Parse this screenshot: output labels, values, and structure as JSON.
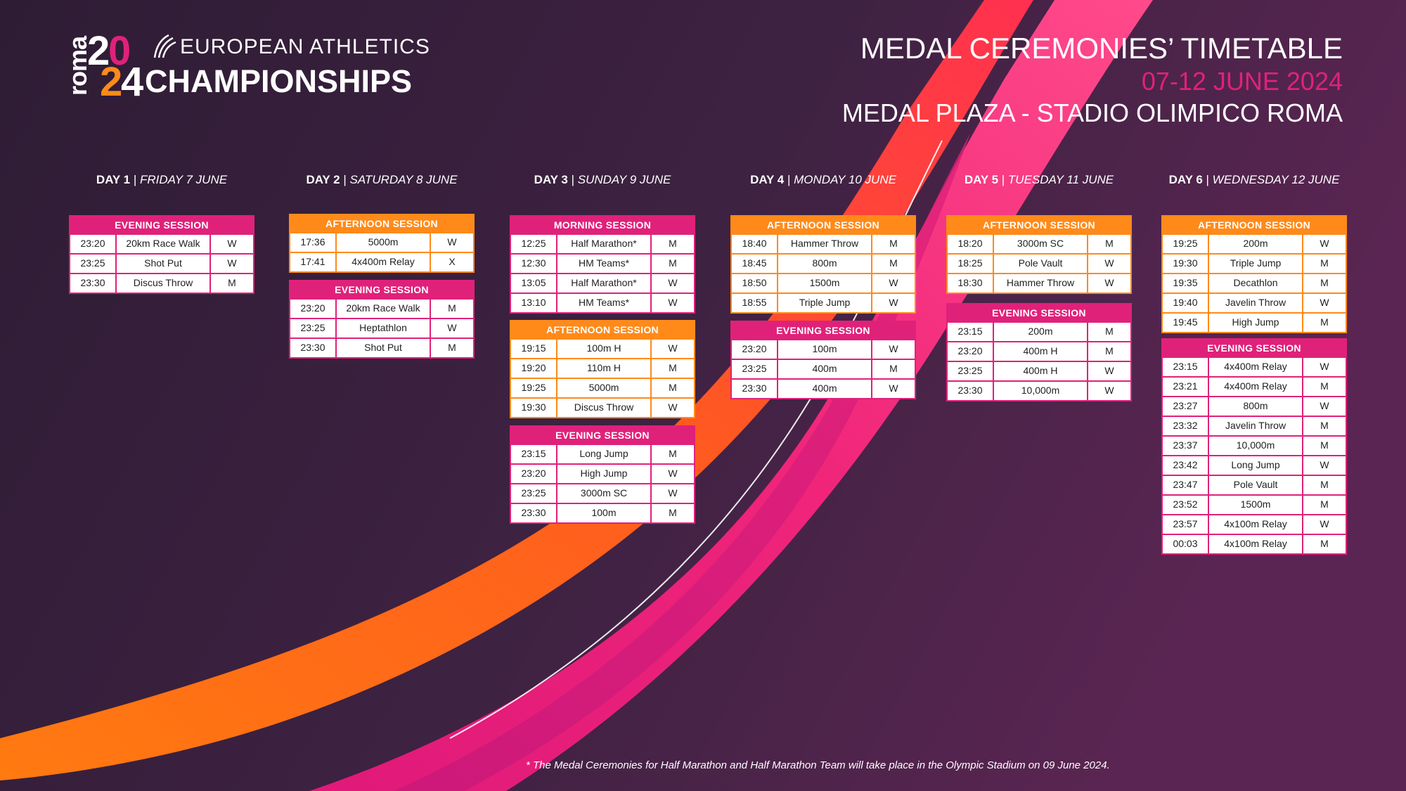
{
  "logo": {
    "roma": "roma",
    "digits": [
      "2",
      "0",
      "2",
      "4"
    ],
    "line1": "EUROPEAN ATHLETICS",
    "line2": "CHAMPIONSHIPS"
  },
  "header": {
    "title": "MEDAL CEREMONIES’ TIMETABLE",
    "dates": "07-12 JUNE 2024",
    "venue": "MEDAL PLAZA - STADIO OLIMPICO ROMA"
  },
  "colors": {
    "background": "#2e1d36",
    "pink": "#e0217a",
    "orange": "#ff8a1a"
  },
  "days": [
    {
      "day": "DAY 1",
      "date": "FRIDAY 7 JUNE",
      "sessions": [
        {
          "type": "evening",
          "title": "EVENING SESSION",
          "rows": [
            {
              "time": "23:20",
              "event": "20km Race Walk",
              "gender": "W"
            },
            {
              "time": "23:25",
              "event": "Shot Put",
              "gender": "W"
            },
            {
              "time": "23:30",
              "event": "Discus Throw",
              "gender": "M"
            }
          ]
        }
      ]
    },
    {
      "day": "DAY 2",
      "date": "SATURDAY 8 JUNE",
      "sessions": [
        {
          "type": "afternoon",
          "title": "AFTERNOON SESSION",
          "rows": [
            {
              "time": "17:36",
              "event": "5000m",
              "gender": "W"
            },
            {
              "time": "17:41",
              "event": "4x400m Relay",
              "gender": "X"
            }
          ]
        },
        {
          "type": "evening",
          "title": "EVENING SESSION",
          "rows": [
            {
              "time": "23:20",
              "event": "20km Race Walk",
              "gender": "M"
            },
            {
              "time": "23:25",
              "event": "Heptathlon",
              "gender": "W"
            },
            {
              "time": "23:30",
              "event": "Shot Put",
              "gender": "M"
            }
          ]
        }
      ]
    },
    {
      "day": "DAY 3",
      "date": "SUNDAY 9 JUNE",
      "sessions": [
        {
          "type": "morning",
          "title": "MORNING SESSION",
          "rows": [
            {
              "time": "12:25",
              "event": "Half Marathon*",
              "gender": "M"
            },
            {
              "time": "12:30",
              "event": "HM Teams*",
              "gender": "M"
            },
            {
              "time": "13:05",
              "event": "Half Marathon*",
              "gender": "W"
            },
            {
              "time": "13:10",
              "event": "HM Teams*",
              "gender": "W"
            }
          ]
        },
        {
          "type": "afternoon",
          "title": "AFTERNOON SESSION",
          "rows": [
            {
              "time": "19:15",
              "event": "100m H",
              "gender": "W"
            },
            {
              "time": "19:20",
              "event": "110m H",
              "gender": "M"
            },
            {
              "time": "19:25",
              "event": "5000m",
              "gender": "M"
            },
            {
              "time": "19:30",
              "event": "Discus Throw",
              "gender": "W"
            }
          ]
        },
        {
          "type": "evening",
          "title": "EVENING SESSION",
          "rows": [
            {
              "time": "23:15",
              "event": "Long Jump",
              "gender": "M"
            },
            {
              "time": "23:20",
              "event": "High Jump",
              "gender": "W"
            },
            {
              "time": "23:25",
              "event": "3000m SC",
              "gender": "W"
            },
            {
              "time": "23:30",
              "event": "100m",
              "gender": "M"
            }
          ]
        }
      ]
    },
    {
      "day": "DAY 4",
      "date": "MONDAY 10 JUNE",
      "sessions": [
        {
          "type": "afternoon",
          "title": "AFTERNOON SESSION",
          "rows": [
            {
              "time": "18:40",
              "event": "Hammer Throw",
              "gender": "M"
            },
            {
              "time": "18:45",
              "event": "800m",
              "gender": "M"
            },
            {
              "time": "18:50",
              "event": "1500m",
              "gender": "W"
            },
            {
              "time": "18:55",
              "event": "Triple Jump",
              "gender": "W"
            }
          ]
        },
        {
          "type": "evening",
          "title": "EVENING SESSION",
          "rows": [
            {
              "time": "23:20",
              "event": "100m",
              "gender": "W"
            },
            {
              "time": "23:25",
              "event": "400m",
              "gender": "M"
            },
            {
              "time": "23:30",
              "event": "400m",
              "gender": "W"
            }
          ]
        }
      ]
    },
    {
      "day": "DAY 5",
      "date": "TUESDAY 11 JUNE",
      "sessions": [
        {
          "type": "afternoon",
          "title": "AFTERNOON SESSION",
          "rows": [
            {
              "time": "18:20",
              "event": "3000m SC",
              "gender": "M"
            },
            {
              "time": "18:25",
              "event": "Pole Vault",
              "gender": "W"
            },
            {
              "time": "18:30",
              "event": "Hammer Throw",
              "gender": "W"
            }
          ]
        },
        {
          "type": "evening",
          "title": "EVENING SESSION",
          "rows": [
            {
              "time": "23:15",
              "event": "200m",
              "gender": "M"
            },
            {
              "time": "23:20",
              "event": "400m H",
              "gender": "M"
            },
            {
              "time": "23:25",
              "event": "400m H",
              "gender": "W"
            },
            {
              "time": "23:30",
              "event": "10,000m",
              "gender": "W"
            }
          ]
        }
      ]
    },
    {
      "day": "DAY 6",
      "date": "WEDNESDAY 12 JUNE",
      "sessions": [
        {
          "type": "afternoon",
          "title": "AFTERNOON SESSION",
          "rows": [
            {
              "time": "19:25",
              "event": "200m",
              "gender": "W"
            },
            {
              "time": "19:30",
              "event": "Triple Jump",
              "gender": "M"
            },
            {
              "time": "19:35",
              "event": "Decathlon",
              "gender": "M"
            },
            {
              "time": "19:40",
              "event": "Javelin Throw",
              "gender": "W"
            },
            {
              "time": "19:45",
              "event": "High Jump",
              "gender": "M"
            }
          ]
        },
        {
          "type": "evening",
          "title": "EVENING SESSION",
          "rows": [
            {
              "time": "23:15",
              "event": "4x400m Relay",
              "gender": "W"
            },
            {
              "time": "23:21",
              "event": "4x400m Relay",
              "gender": "M"
            },
            {
              "time": "23:27",
              "event": "800m",
              "gender": "W"
            },
            {
              "time": "23:32",
              "event": "Javelin Throw",
              "gender": "M"
            },
            {
              "time": "23:37",
              "event": "10,000m",
              "gender": "M"
            },
            {
              "time": "23:42",
              "event": "Long Jump",
              "gender": "W"
            },
            {
              "time": "23:47",
              "event": "Pole Vault",
              "gender": "M"
            },
            {
              "time": "23:52",
              "event": "1500m",
              "gender": "M"
            },
            {
              "time": "23:57",
              "event": "4x100m Relay",
              "gender": "W"
            },
            {
              "time": "00:03",
              "event": "4x100m Relay",
              "gender": "M"
            }
          ]
        }
      ]
    }
  ],
  "footnote": "* The Medal Ceremonies for Half Marathon and Half Marathon Team will take place in the Olympic Stadium on 09 June 2024."
}
